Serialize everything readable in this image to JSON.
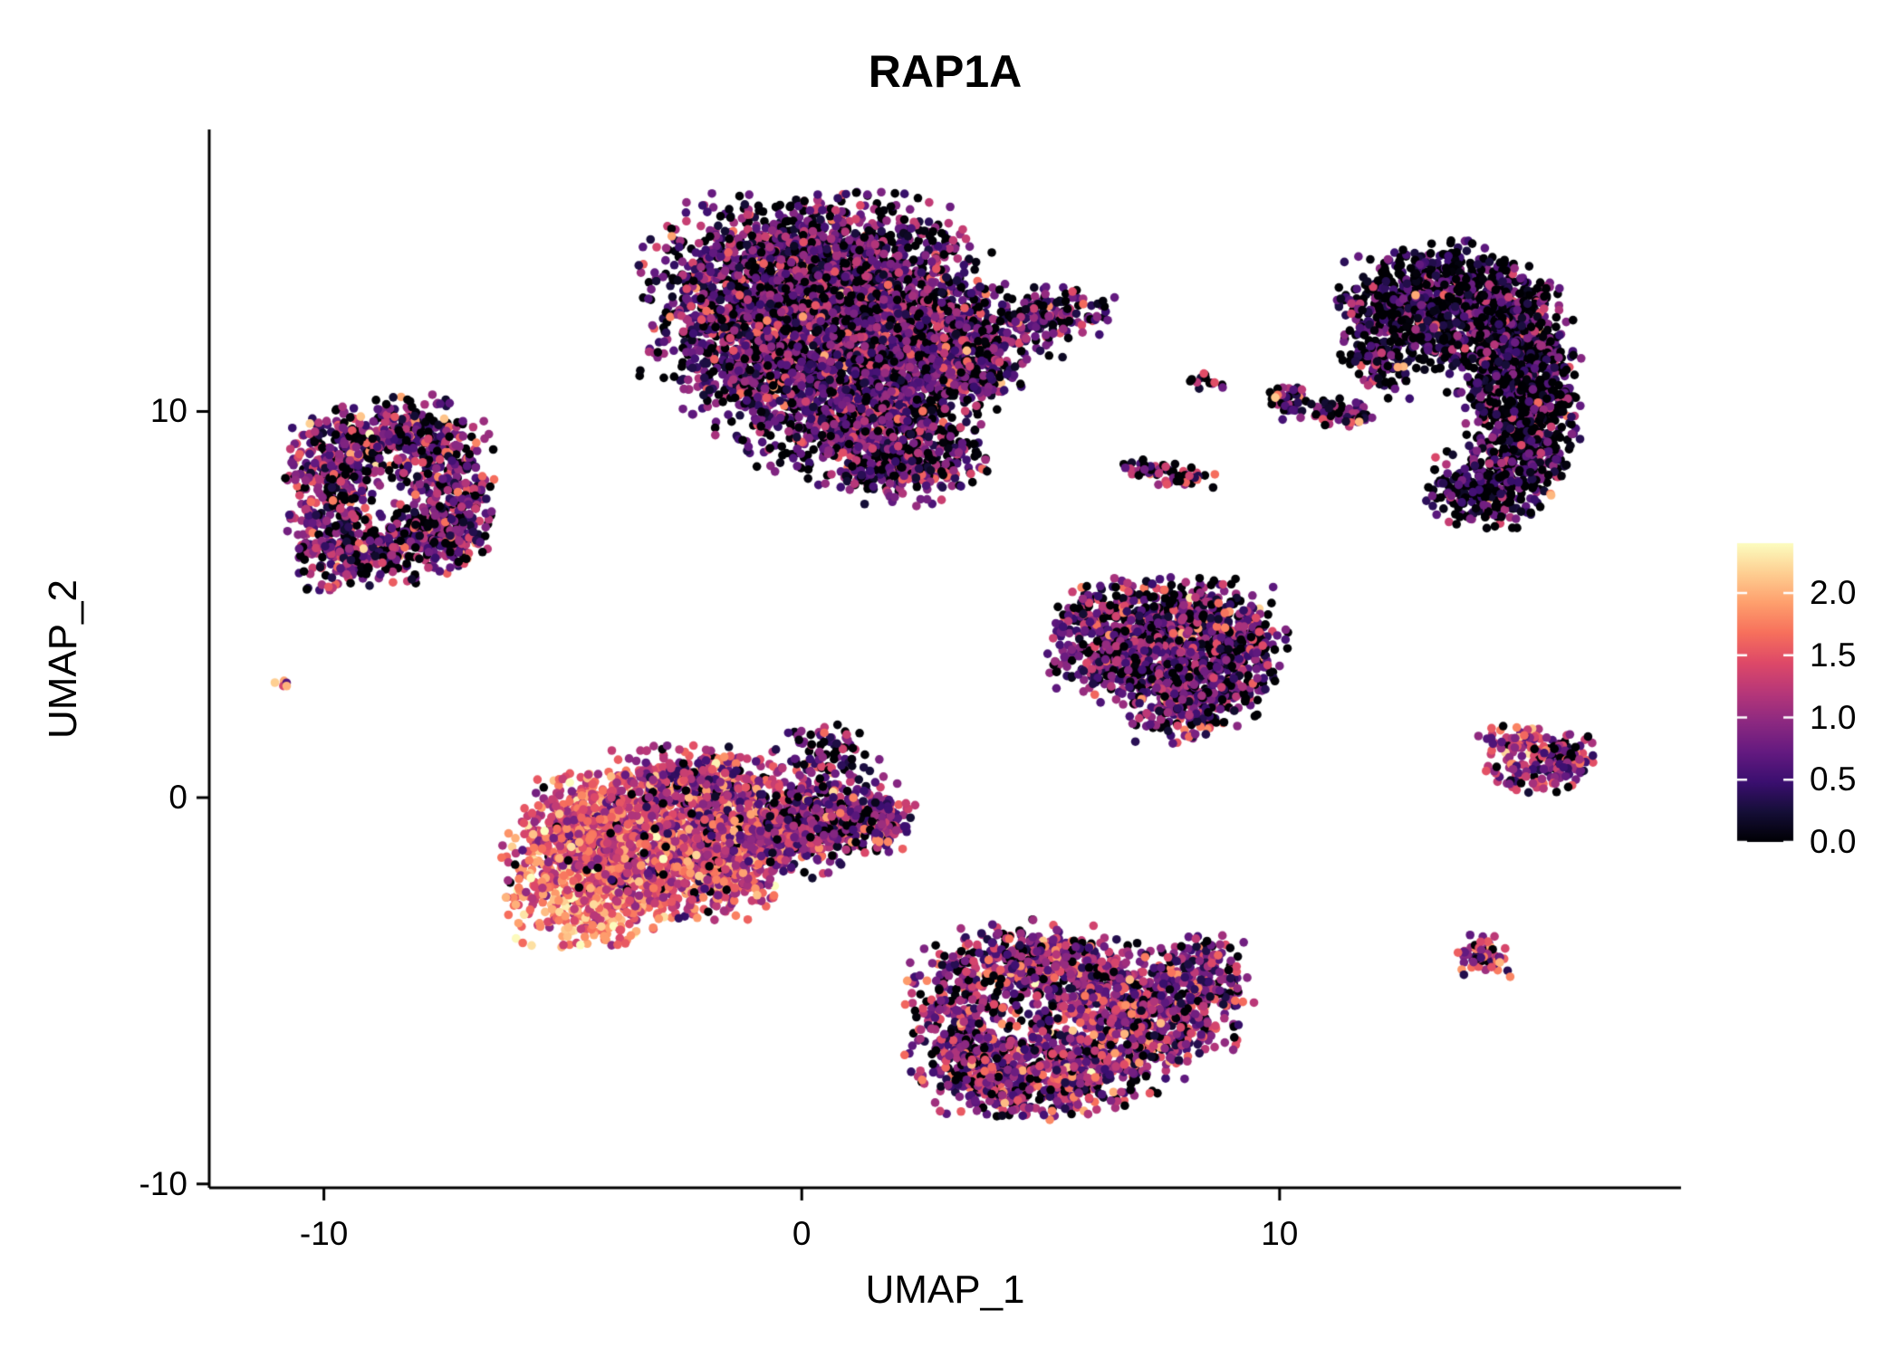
{
  "chart_data": {
    "type": "scatter",
    "title": "RAP1A",
    "xlabel": "UMAP_1",
    "ylabel": "UMAP_2",
    "xlim": [
      -12.4,
      18.4
    ],
    "ylim": [
      -10.1,
      17.3
    ],
    "xticks": {
      "values": [
        -10,
        0,
        10
      ],
      "labels": [
        "-10",
        "0",
        "10"
      ]
    },
    "yticks": {
      "values": [
        -10,
        0,
        10
      ],
      "labels": [
        "-10",
        "0",
        "10"
      ]
    },
    "grid": false,
    "background": "#ffffff",
    "axis_color": "#000000",
    "point_radius_px": 4.8,
    "colormap": "magma",
    "color_domain": [
      0,
      2.4
    ],
    "magma_stops": [
      [
        0.0,
        "#000004"
      ],
      [
        0.1,
        "#150e37"
      ],
      [
        0.2,
        "#3b0f70"
      ],
      [
        0.3,
        "#641a80"
      ],
      [
        0.4,
        "#8c2981"
      ],
      [
        0.5,
        "#b73779"
      ],
      [
        0.6,
        "#de4968"
      ],
      [
        0.7,
        "#f7705c"
      ],
      [
        0.8,
        "#fe9f6d"
      ],
      [
        0.9,
        "#fecf92"
      ],
      [
        1.0,
        "#fcfdbf"
      ]
    ],
    "legend_position": "right",
    "colorbar": {
      "min": 0.0,
      "max": 2.4,
      "ticks": {
        "values": [
          2.0,
          1.5,
          1.0,
          0.5,
          0.0
        ],
        "labels": [
          "2.0",
          "1.5",
          "1.0",
          "0.5",
          "0.0"
        ]
      }
    },
    "n_points_total_approx": 16000,
    "clusters": [
      {
        "name": "top-center-large",
        "value": {
          "p0": 0.22,
          "mean": 0.75,
          "sd": 0.45
        },
        "blobs": [
          {
            "x": 0.3,
            "y": 14.0,
            "sx": 1.5,
            "sy": 0.8,
            "n": 900
          },
          {
            "x": -0.9,
            "y": 12.6,
            "sx": 1.2,
            "sy": 1.0,
            "n": 800
          },
          {
            "x": 1.5,
            "y": 12.8,
            "sx": 1.2,
            "sy": 0.9,
            "n": 800
          },
          {
            "x": 0.2,
            "y": 11.2,
            "sx": 1.3,
            "sy": 0.9,
            "n": 800
          },
          {
            "x": 2.6,
            "y": 11.4,
            "sx": 0.9,
            "sy": 0.8,
            "n": 450
          },
          {
            "x": 1.2,
            "y": 9.7,
            "sx": 1.2,
            "sy": 0.8,
            "n": 600
          },
          {
            "x": 2.2,
            "y": 8.7,
            "sx": 0.8,
            "sy": 0.55,
            "n": 250
          },
          {
            "x": 4.3,
            "y": 12.3,
            "sx": 0.75,
            "sy": 0.5,
            "n": 180
          },
          {
            "x": 5.5,
            "y": 12.6,
            "sx": 0.5,
            "sy": 0.35,
            "n": 80
          },
          {
            "x": 3.7,
            "y": 11.0,
            "sx": 0.5,
            "sy": 0.4,
            "n": 100
          },
          {
            "x": 6.3,
            "y": 12.8,
            "sx": 0.12,
            "sy": 0.1,
            "n": 3,
            "mean": 0.3
          }
        ]
      },
      {
        "name": "left-ring",
        "value": {
          "p0": 0.18,
          "mean": 0.85,
          "sd": 0.5
        },
        "blobs": [
          {
            "x": -9.6,
            "y": 8.9,
            "sx": 0.55,
            "sy": 0.6,
            "n": 220
          },
          {
            "x": -8.3,
            "y": 9.4,
            "sx": 0.7,
            "sy": 0.5,
            "n": 220
          },
          {
            "x": -7.4,
            "y": 8.3,
            "sx": 0.5,
            "sy": 0.7,
            "n": 200
          },
          {
            "x": -9.9,
            "y": 7.4,
            "sx": 0.45,
            "sy": 0.6,
            "n": 180
          },
          {
            "x": -8.3,
            "y": 6.6,
            "sx": 0.8,
            "sy": 0.5,
            "n": 250
          },
          {
            "x": -9.5,
            "y": 6.2,
            "sx": 0.5,
            "sy": 0.4,
            "n": 130
          },
          {
            "x": -7.3,
            "y": 6.9,
            "sx": 0.4,
            "sy": 0.5,
            "n": 110
          }
        ]
      },
      {
        "name": "tiny-far-left",
        "value": {
          "p0": 0.2,
          "mean": 1.2,
          "sd": 0.7
        },
        "blobs": [
          {
            "x": -10.85,
            "y": 2.95,
            "sx": 0.1,
            "sy": 0.1,
            "n": 5
          },
          {
            "x": -10.8,
            "y": 2.9,
            "sx": 0.03,
            "sy": 0.03,
            "n": 1,
            "mean": 2.2,
            "sd": 0.1,
            "p0": 0
          }
        ]
      },
      {
        "name": "center-left-warm",
        "value": {
          "p0": 0.06,
          "mean": 1.3,
          "sd": 0.45
        },
        "blobs": [
          {
            "x": -4.5,
            "y": -2.2,
            "sx": 0.85,
            "sy": 0.8,
            "n": 600,
            "mean": 1.7,
            "sd": 0.38,
            "p0": 0.02
          },
          {
            "x": -3.3,
            "y": -1.0,
            "sx": 0.95,
            "sy": 0.85,
            "n": 650,
            "mean": 1.5,
            "sd": 0.4,
            "p0": 0.03
          },
          {
            "x": -4.6,
            "y": -0.6,
            "sx": 0.6,
            "sy": 0.6,
            "n": 300,
            "mean": 1.45,
            "sd": 0.4,
            "p0": 0.03
          },
          {
            "x": -2.0,
            "y": -1.8,
            "sx": 0.8,
            "sy": 0.65,
            "n": 450,
            "mean": 1.3,
            "sd": 0.42,
            "p0": 0.05
          },
          {
            "x": -2.2,
            "y": 0.3,
            "sx": 0.9,
            "sy": 0.5,
            "n": 350,
            "mean": 1.2,
            "sd": 0.45,
            "p0": 0.08
          },
          {
            "x": -0.6,
            "y": -0.9,
            "sx": 0.8,
            "sy": 0.6,
            "n": 380,
            "mean": 1.05,
            "sd": 0.45,
            "p0": 0.1
          },
          {
            "x": 0.6,
            "y": -0.5,
            "sx": 0.7,
            "sy": 0.5,
            "n": 280,
            "mean": 0.95,
            "sd": 0.45,
            "p0": 0.12
          },
          {
            "x": 1.5,
            "y": -0.6,
            "sx": 0.45,
            "sy": 0.4,
            "n": 130,
            "mean": 0.9,
            "sd": 0.45,
            "p0": 0.15
          },
          {
            "x": 0.6,
            "y": 1.1,
            "sx": 0.5,
            "sy": 0.45,
            "n": 90,
            "mean": 0.8,
            "sd": 0.5,
            "p0": 0.25
          }
        ]
      },
      {
        "name": "bottom-center",
        "value": {
          "p0": 0.12,
          "mean": 0.95,
          "sd": 0.5
        },
        "blobs": [
          {
            "x": 3.3,
            "y": -5.4,
            "sx": 0.55,
            "sy": 0.9,
            "n": 280
          },
          {
            "x": 3.9,
            "y": -7.0,
            "sx": 0.7,
            "sy": 0.6,
            "n": 280
          },
          {
            "x": 5.3,
            "y": -7.4,
            "sx": 0.8,
            "sy": 0.45,
            "n": 250
          },
          {
            "x": 6.3,
            "y": -6.5,
            "sx": 0.9,
            "sy": 0.6,
            "n": 350
          },
          {
            "x": 7.5,
            "y": -5.6,
            "sx": 0.8,
            "sy": 0.6,
            "n": 320
          },
          {
            "x": 6.2,
            "y": -4.7,
            "sx": 0.9,
            "sy": 0.55,
            "n": 320
          },
          {
            "x": 4.7,
            "y": -4.2,
            "sx": 0.8,
            "sy": 0.5,
            "n": 280
          },
          {
            "x": 8.5,
            "y": -4.6,
            "sx": 0.5,
            "sy": 0.5,
            "n": 140
          }
        ]
      },
      {
        "name": "mid-right-triangle",
        "value": {
          "p0": 0.22,
          "mean": 0.8,
          "sd": 0.5
        },
        "blobs": [
          {
            "x": 7.2,
            "y": 4.7,
            "sx": 0.9,
            "sy": 0.5,
            "n": 300
          },
          {
            "x": 8.5,
            "y": 4.4,
            "sx": 0.7,
            "sy": 0.55,
            "n": 260
          },
          {
            "x": 6.4,
            "y": 3.9,
            "sx": 0.6,
            "sy": 0.55,
            "n": 220
          },
          {
            "x": 7.5,
            "y": 3.4,
            "sx": 0.8,
            "sy": 0.55,
            "n": 280
          },
          {
            "x": 8.6,
            "y": 2.8,
            "sx": 0.55,
            "sy": 0.5,
            "n": 180
          },
          {
            "x": 7.8,
            "y": 2.2,
            "sx": 0.45,
            "sy": 0.4,
            "n": 120
          },
          {
            "x": 9.4,
            "y": 3.9,
            "sx": 0.4,
            "sy": 0.5,
            "n": 100
          }
        ]
      },
      {
        "name": "top-right-dark-crescent",
        "value": {
          "p0": 0.4,
          "mean": 0.5,
          "sd": 0.45
        },
        "blobs": [
          {
            "x": 12.4,
            "y": 12.6,
            "sx": 0.6,
            "sy": 0.75,
            "n": 280
          },
          {
            "x": 13.5,
            "y": 13.2,
            "sx": 0.7,
            "sy": 0.6,
            "n": 300
          },
          {
            "x": 14.6,
            "y": 12.7,
            "sx": 0.6,
            "sy": 0.6,
            "n": 260
          },
          {
            "x": 15.1,
            "y": 11.6,
            "sx": 0.5,
            "sy": 0.7,
            "n": 260
          },
          {
            "x": 15.3,
            "y": 10.3,
            "sx": 0.5,
            "sy": 0.75,
            "n": 280
          },
          {
            "x": 15.0,
            "y": 9.0,
            "sx": 0.55,
            "sy": 0.7,
            "n": 260
          },
          {
            "x": 14.3,
            "y": 8.0,
            "sx": 0.6,
            "sy": 0.5,
            "n": 220
          },
          {
            "x": 14.4,
            "y": 10.9,
            "sx": 0.45,
            "sy": 0.8,
            "n": 200
          },
          {
            "x": 13.3,
            "y": 12.0,
            "sx": 0.5,
            "sy": 0.5,
            "n": 160
          },
          {
            "x": 12.1,
            "y": 11.3,
            "sx": 0.3,
            "sy": 0.5,
            "n": 80
          },
          {
            "x": 12.55,
            "y": 11.15,
            "sx": 0.05,
            "sy": 0.05,
            "n": 2,
            "mean": 2.0,
            "sd": 0.15,
            "p0": 0
          },
          {
            "x": 15.6,
            "y": 7.9,
            "sx": 0.06,
            "sy": 0.06,
            "n": 2,
            "mean": 1.7,
            "sd": 0.2,
            "p0": 0
          }
        ]
      },
      {
        "name": "tiny-pair-mid",
        "value": {
          "p0": 0.3,
          "mean": 0.7,
          "sd": 0.5
        },
        "blobs": [
          {
            "x": 8.5,
            "y": 10.8,
            "sx": 0.18,
            "sy": 0.13,
            "n": 14
          }
        ]
      },
      {
        "name": "upper-streak",
        "value": {
          "p0": 0.25,
          "mean": 0.7,
          "sd": 0.45
        },
        "blobs": [
          {
            "x": 10.2,
            "y": 10.35,
            "sx": 0.25,
            "sy": 0.16,
            "n": 35
          },
          {
            "x": 11.0,
            "y": 10.0,
            "sx": 0.45,
            "sy": 0.18,
            "n": 55
          },
          {
            "x": 11.6,
            "y": 9.75,
            "sx": 0.2,
            "sy": 0.12,
            "n": 20
          },
          {
            "x": 9.95,
            "y": 10.45,
            "sx": 0.05,
            "sy": 0.05,
            "n": 2,
            "mean": 1.9,
            "sd": 0.15,
            "p0": 0
          }
        ]
      },
      {
        "name": "lower-streak",
        "value": {
          "p0": 0.3,
          "mean": 0.7,
          "sd": 0.45
        },
        "blobs": [
          {
            "x": 7.3,
            "y": 8.5,
            "sx": 0.28,
            "sy": 0.14,
            "n": 30
          },
          {
            "x": 8.05,
            "y": 8.3,
            "sx": 0.3,
            "sy": 0.14,
            "n": 30
          }
        ]
      },
      {
        "name": "right-chevron",
        "value": {
          "p0": 0.12,
          "mean": 1.0,
          "sd": 0.5
        },
        "blobs": [
          {
            "x": 15.0,
            "y": 1.4,
            "sx": 0.4,
            "sy": 0.22,
            "n": 70
          },
          {
            "x": 16.0,
            "y": 1.05,
            "sx": 0.35,
            "sy": 0.28,
            "n": 80
          },
          {
            "x": 15.2,
            "y": 0.55,
            "sx": 0.45,
            "sy": 0.2,
            "n": 60
          }
        ]
      },
      {
        "name": "small-right-bottom",
        "value": {
          "p0": 0.1,
          "mean": 1.05,
          "sd": 0.5
        },
        "blobs": [
          {
            "x": 14.3,
            "y": -4.1,
            "sx": 0.28,
            "sy": 0.26,
            "n": 70
          }
        ]
      }
    ]
  }
}
